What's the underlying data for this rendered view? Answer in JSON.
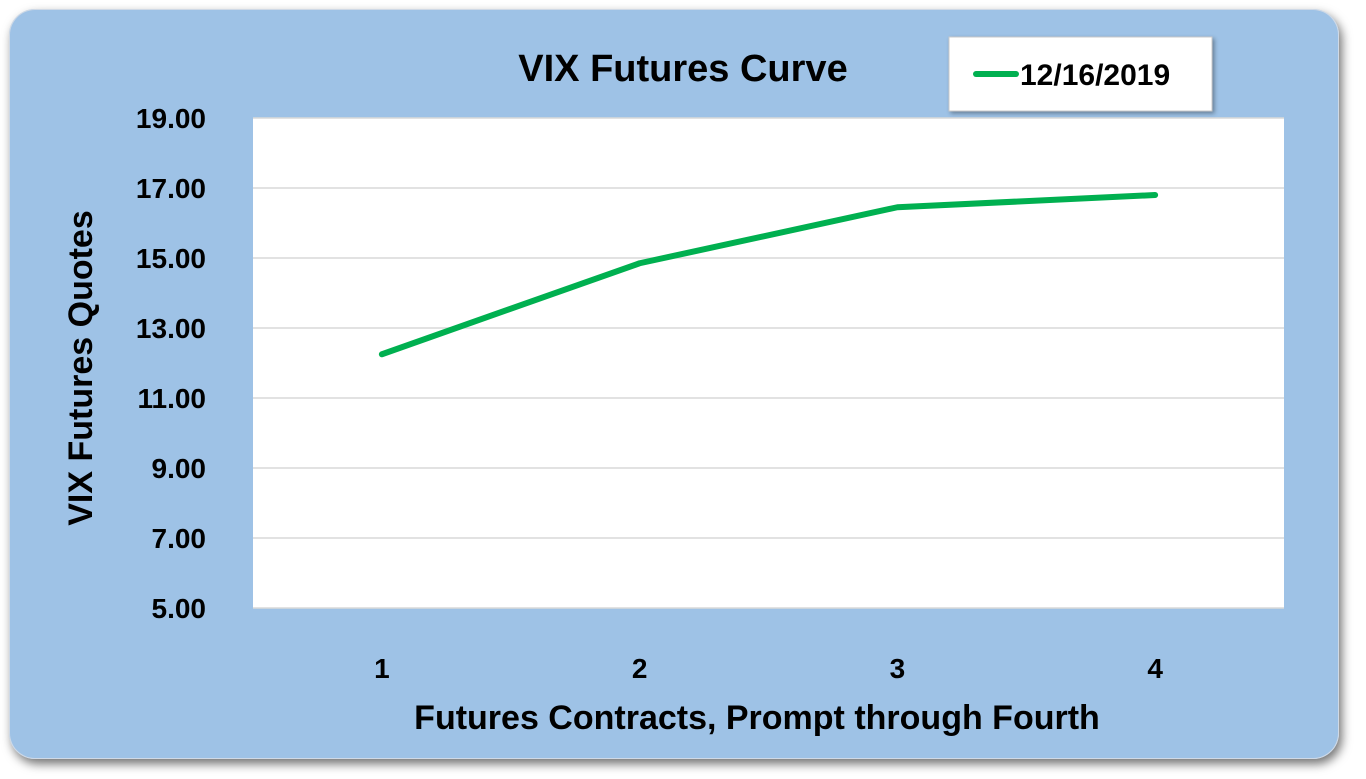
{
  "chart_data": {
    "type": "line",
    "title": "VIX Futures Curve",
    "xlabel": "Futures Contracts, Prompt through Fourth",
    "ylabel": "VIX Futures  Quotes",
    "categories": [
      "1",
      "2",
      "3",
      "4"
    ],
    "series": [
      {
        "name": "12/16/2019",
        "color": "#00b050",
        "values": [
          12.25,
          14.85,
          16.45,
          16.8
        ]
      }
    ],
    "ylim": [
      5,
      19
    ],
    "yticks": [
      5,
      7,
      9,
      11,
      13,
      15,
      17,
      19
    ],
    "ytick_labels": [
      "5.00",
      "7.00",
      "9.00",
      "11.00",
      "13.00",
      "15.00",
      "17.00",
      "19.00"
    ],
    "grid": "horizontal",
    "legend_position": "top-right",
    "colors": {
      "frame_background": "#9ec2e6",
      "plot_background": "#ffffff",
      "gridline": "#d9d9d9"
    }
  }
}
